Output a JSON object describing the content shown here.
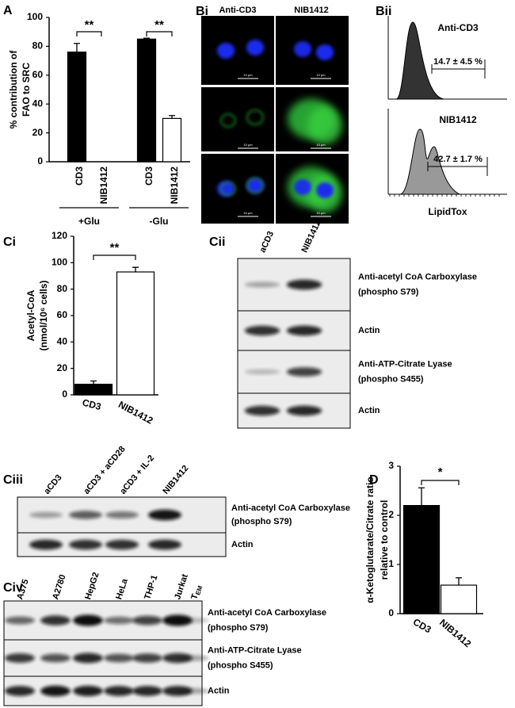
{
  "panel_labels": [
    "A",
    "Bi",
    "Bii",
    "Ci",
    "Cii",
    "Ciii",
    "Civ",
    "D"
  ],
  "chart_data": [
    {
      "type": "bar",
      "ylabel": [
        "% contribution of",
        "FAO to SRC"
      ],
      "categories": [
        "CD3",
        "NIB1412",
        "CD3",
        "NIB1412"
      ],
      "values": [
        76,
        0,
        85,
        30
      ],
      "errors": [
        6,
        null,
        0.6,
        2
      ],
      "colors": [
        "#000000",
        "#ffffff",
        "#000000",
        "#ffffff"
      ],
      "ylim": [
        0,
        100
      ],
      "yticks": [
        0,
        20,
        40,
        60,
        80,
        100
      ],
      "annotations": [
        "**",
        "**"
      ],
      "groups": [
        "+Glu",
        "-Glu"
      ]
    },
    {
      "type": "bar",
      "ylabel": [
        "Acetyl-CoA",
        "(nmol/10⁶ cells)"
      ],
      "categories": [
        "CD3",
        "NIB1412"
      ],
      "values": [
        8,
        93
      ],
      "errors": [
        2.5,
        3.5
      ],
      "colors": [
        "#000000",
        "#ffffff"
      ],
      "ylim": [
        0,
        120
      ],
      "yticks": [
        0,
        20,
        40,
        60,
        80,
        100,
        120
      ],
      "annotations": [
        "**"
      ]
    },
    {
      "type": "bar",
      "ylabel": [
        "α-Ketoglutarate/Citrate ratio",
        "relative to control"
      ],
      "categories": [
        "CD3",
        "NIB1412"
      ],
      "values": [
        2.2,
        0.58
      ],
      "errors": [
        0.36,
        0.15
      ],
      "colors": [
        "#000000",
        "#ffffff"
      ],
      "ylim": [
        0,
        3
      ],
      "yticks": [
        0,
        1,
        2,
        3
      ],
      "annotations": [
        "*"
      ]
    }
  ],
  "microscopy": {
    "columns": [
      "Anti-CD3",
      "NIB1412"
    ],
    "scale_bar": "10 µm"
  },
  "flow": {
    "panels": [
      {
        "title": "Anti-CD3",
        "gate": "14.7 ± 4.5 %"
      },
      {
        "title": "NIB1412",
        "gate": "42.7 ± 1.7 %"
      }
    ],
    "xlabel": "LipidTox"
  },
  "blot_cii": {
    "lanes": [
      "aCD3",
      "NIB1412"
    ],
    "rows": [
      [
        "Anti-acetyl CoA Carboxylase",
        "(phospho S79)"
      ],
      [
        "Actin"
      ],
      [
        "Anti-ATP-Citrate Lyase",
        "(phospho S455)"
      ],
      [
        "Actin"
      ]
    ]
  },
  "blot_ciii": {
    "lanes": [
      "aCD3",
      "aCD3 + aCD28",
      "aCD3 + IL-2",
      "NIB1412"
    ],
    "rows": [
      [
        "Anti-acetyl CoA Carboxylase",
        "(phospho S79)"
      ],
      [
        "Actin"
      ]
    ]
  },
  "blot_civ": {
    "lanes": [
      "A375",
      "A2780",
      "HepG2",
      "HeLa",
      "THP-1",
      "Jurkat",
      {
        "text": "T",
        "subscript": "EM"
      }
    ],
    "rows": [
      [
        "Anti-acetyl CoA Carboxylase",
        "(phospho S79)"
      ],
      [
        "Anti-ATP-Citrate Lyase",
        "(phospho S455)"
      ],
      [
        "Actin"
      ]
    ]
  }
}
